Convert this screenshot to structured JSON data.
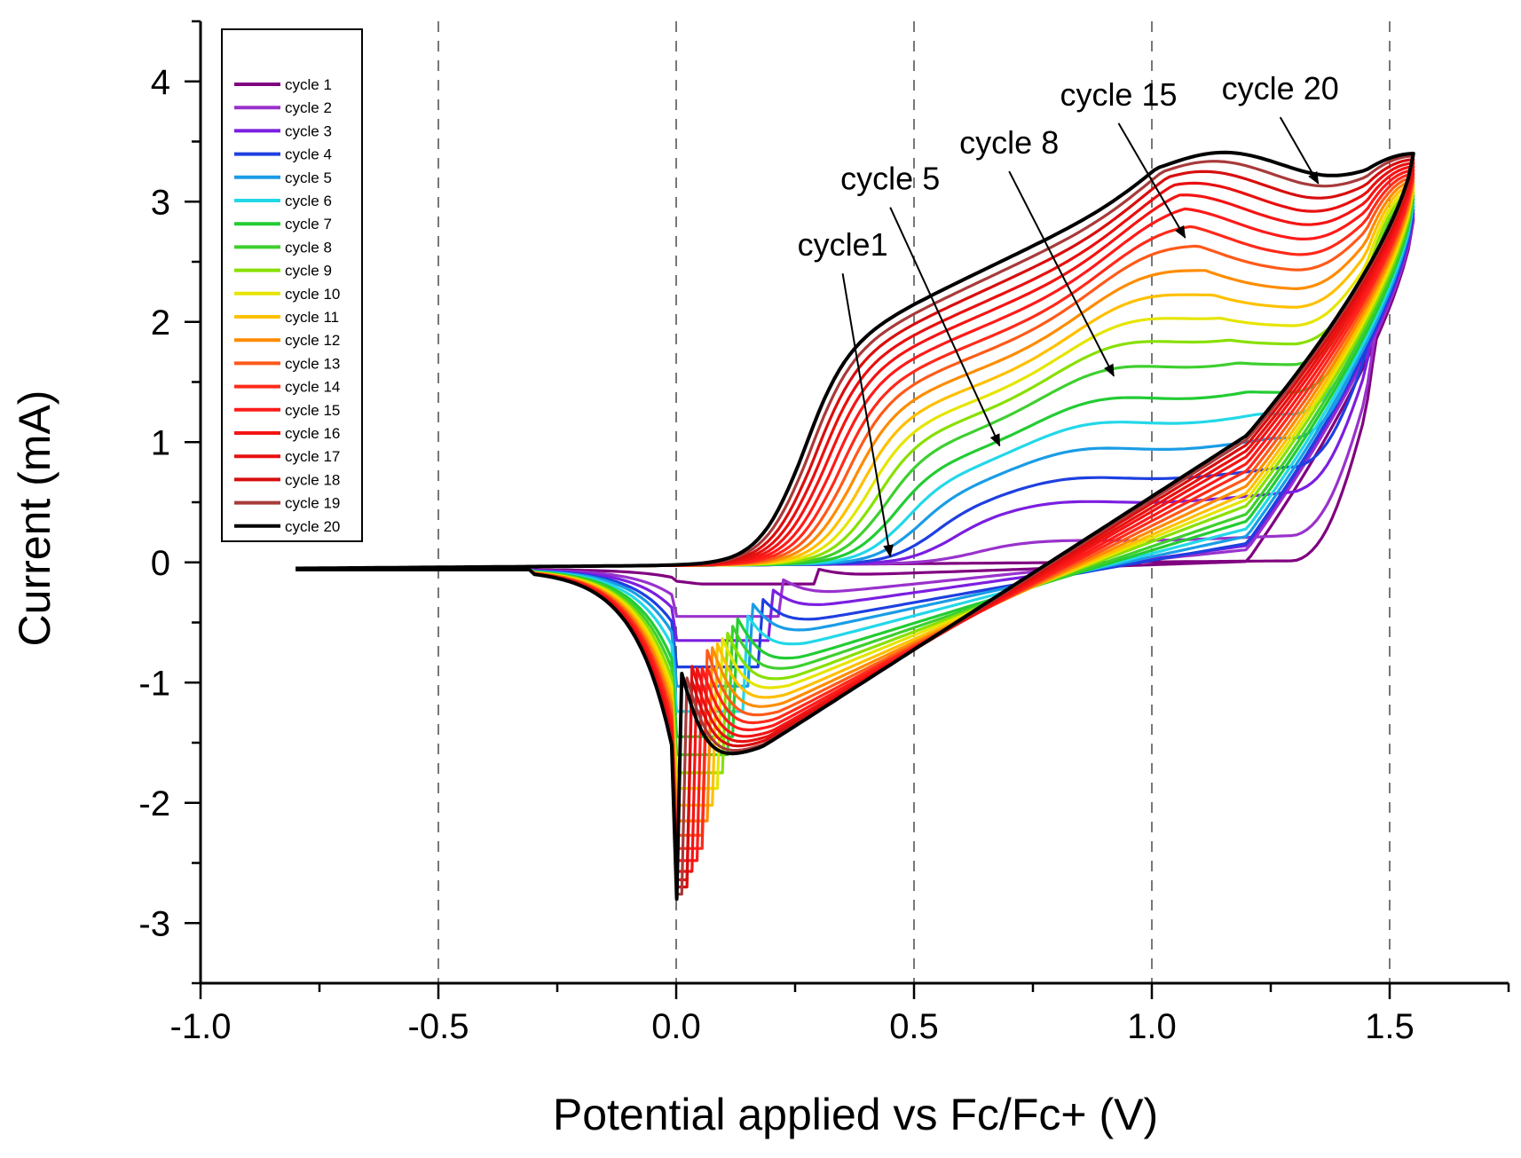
{
  "chart_data": {
    "type": "line",
    "title": "",
    "xlabel": "Potential applied vs Fc/Fc+ (V)",
    "ylabel": "Current (mA)",
    "xlim": [
      -1.0,
      1.75
    ],
    "ylim": [
      -3.5,
      4.5
    ],
    "xticks": [
      -1.0,
      -0.5,
      0.0,
      0.5,
      1.0,
      1.5
    ],
    "xtick_labels": [
      "-1.0",
      "-0.5",
      "0.0",
      "0.5",
      "1.0",
      "1.5"
    ],
    "yticks": [
      -3,
      -2,
      -1,
      0,
      1,
      2,
      3,
      4
    ],
    "ytick_labels": [
      "-3",
      "-2",
      "-1",
      "0",
      "1",
      "2",
      "3",
      "4"
    ],
    "vertical_reference_lines": [
      -0.5,
      0.0,
      0.5,
      1.0,
      1.5
    ],
    "legend_position": "top-left",
    "scan_range_V": [
      -0.8,
      1.55
    ],
    "series": [
      {
        "name": "cycle 1",
        "color": "#800080",
        "reduction_peak_mA": -0.18,
        "oxidation_plateau_mA": 0.0,
        "return_current_mA": 0.02,
        "vertex_current_mA": 2.85
      },
      {
        "name": "cycle 2",
        "color": "#9932CC",
        "reduction_peak_mA": -0.45,
        "oxidation_plateau_mA": 0.22,
        "return_current_mA": 0.3,
        "vertex_current_mA": 2.87
      },
      {
        "name": "cycle 3",
        "color": "#7B1FE0",
        "reduction_peak_mA": -0.65,
        "oxidation_plateau_mA": 0.58,
        "return_current_mA": 0.4,
        "vertex_current_mA": 2.9
      },
      {
        "name": "cycle 4",
        "color": "#1E3FE0",
        "reduction_peak_mA": -0.87,
        "oxidation_plateau_mA": 0.78,
        "return_current_mA": 0.45,
        "vertex_current_mA": 2.93
      },
      {
        "name": "cycle 5",
        "color": "#1A9CE6",
        "reduction_peak_mA": -1.03,
        "oxidation_plateau_mA": 1.02,
        "return_current_mA": 0.62,
        "vertex_current_mA": 2.96
      },
      {
        "name": "cycle 6",
        "color": "#22D8E8",
        "reduction_peak_mA": -1.24,
        "oxidation_plateau_mA": 1.22,
        "return_current_mA": 0.8,
        "vertex_current_mA": 2.99
      },
      {
        "name": "cycle 7",
        "color": "#22CC33",
        "reduction_peak_mA": -1.45,
        "oxidation_plateau_mA": 1.4,
        "return_current_mA": 0.98,
        "vertex_current_mA": 3.02
      },
      {
        "name": "cycle 8",
        "color": "#3ECF2E",
        "reduction_peak_mA": -1.6,
        "oxidation_plateau_mA": 1.63,
        "return_current_mA": 1.15,
        "vertex_current_mA": 3.05
      },
      {
        "name": "cycle 9",
        "color": "#88E000",
        "reduction_peak_mA": -1.75,
        "oxidation_plateau_mA": 1.8,
        "return_current_mA": 1.35,
        "vertex_current_mA": 3.08
      },
      {
        "name": "cycle 10",
        "color": "#E5E500",
        "reduction_peak_mA": -1.88,
        "oxidation_plateau_mA": 1.95,
        "return_current_mA": 1.5,
        "vertex_current_mA": 3.11
      },
      {
        "name": "cycle 11",
        "color": "#FFC000",
        "reduction_peak_mA": -2.02,
        "oxidation_plateau_mA": 2.1,
        "return_current_mA": 1.65,
        "vertex_current_mA": 3.14
      },
      {
        "name": "cycle 12",
        "color": "#FF8C00",
        "reduction_peak_mA": -2.15,
        "oxidation_plateau_mA": 2.25,
        "return_current_mA": 1.82,
        "vertex_current_mA": 3.17
      },
      {
        "name": "cycle 13",
        "color": "#FF5A1A",
        "reduction_peak_mA": -2.27,
        "oxidation_plateau_mA": 2.4,
        "return_current_mA": 2.0,
        "vertex_current_mA": 3.2
      },
      {
        "name": "cycle 14",
        "color": "#FF2A1A",
        "reduction_peak_mA": -2.38,
        "oxidation_plateau_mA": 2.52,
        "return_current_mA": 2.18,
        "vertex_current_mA": 3.23
      },
      {
        "name": "cycle 15",
        "color": "#FF1A1A",
        "reduction_peak_mA": -2.48,
        "oxidation_plateau_mA": 2.64,
        "return_current_mA": 2.35,
        "vertex_current_mA": 3.26
      },
      {
        "name": "cycle 16",
        "color": "#F41414",
        "reduction_peak_mA": -2.57,
        "oxidation_plateau_mA": 2.75,
        "return_current_mA": 2.52,
        "vertex_current_mA": 3.29
      },
      {
        "name": "cycle 17",
        "color": "#E81010",
        "reduction_peak_mA": -2.64,
        "oxidation_plateau_mA": 2.85,
        "return_current_mA": 2.66,
        "vertex_current_mA": 3.32
      },
      {
        "name": "cycle 18",
        "color": "#D80E0E",
        "reduction_peak_mA": -2.7,
        "oxidation_plateau_mA": 2.95,
        "return_current_mA": 2.8,
        "vertex_current_mA": 3.35
      },
      {
        "name": "cycle 19",
        "color": "#A83A3A",
        "reduction_peak_mA": -2.76,
        "oxidation_plateau_mA": 3.04,
        "return_current_mA": 2.92,
        "vertex_current_mA": 3.38
      },
      {
        "name": "cycle 20",
        "color": "#000000",
        "reduction_peak_mA": -2.8,
        "oxidation_plateau_mA": 3.12,
        "return_current_mA": 3.02,
        "vertex_current_mA": 3.4
      }
    ],
    "annotations": [
      {
        "text": "cycle1",
        "from": [
          0.35,
          2.55
        ],
        "to": [
          0.45,
          0.05
        ]
      },
      {
        "text": "cycle 5",
        "from": [
          0.45,
          3.1
        ],
        "to": [
          0.68,
          0.97
        ]
      },
      {
        "text": "cycle 8",
        "from": [
          0.7,
          3.4
        ],
        "to": [
          0.92,
          1.55
        ]
      },
      {
        "text": "cycle 15",
        "from": [
          0.93,
          3.8
        ],
        "to": [
          1.07,
          2.7
        ]
      },
      {
        "text": "cycle 20",
        "from": [
          1.27,
          3.85
        ],
        "to": [
          1.35,
          3.15
        ]
      }
    ]
  }
}
